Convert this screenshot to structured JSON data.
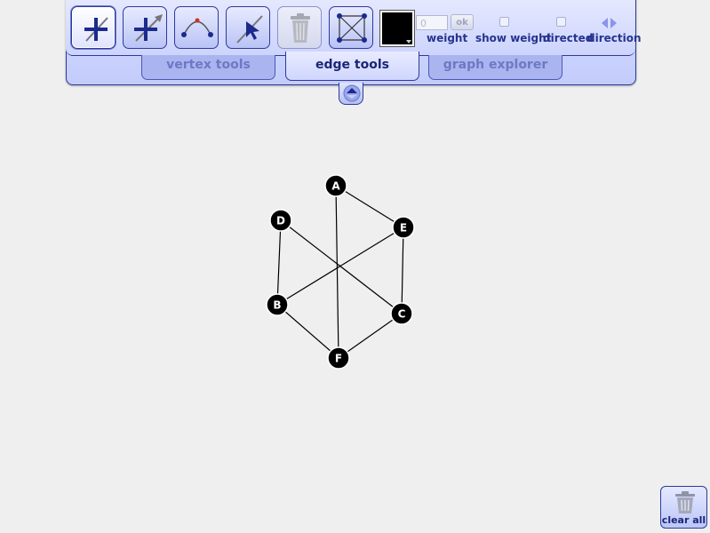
{
  "toolbar": {
    "tools": [
      {
        "name": "add-edge-tool",
        "active": true
      },
      {
        "name": "add-directed-edge-tool",
        "active": false
      },
      {
        "name": "curve-edge-tool",
        "active": false
      },
      {
        "name": "select-edge-tool",
        "active": false
      },
      {
        "name": "delete-edge-tool",
        "disabled": true
      },
      {
        "name": "complete-graph-tool",
        "active": false
      }
    ],
    "color": "#000000",
    "weight_value": "0",
    "ok_label": "ok",
    "weight_label": "weight",
    "show_weight_label": "show weight",
    "directed_label": "directed",
    "direction_label": "direction"
  },
  "tabs": [
    {
      "label": "vertex tools",
      "active": false
    },
    {
      "label": "edge tools",
      "active": true
    },
    {
      "label": "graph explorer",
      "active": false
    }
  ],
  "graph": {
    "vertices": [
      {
        "id": "A",
        "label": "A"
      },
      {
        "id": "D",
        "label": "D"
      },
      {
        "id": "E",
        "label": "E"
      },
      {
        "id": "B",
        "label": "B"
      },
      {
        "id": "C",
        "label": "C"
      },
      {
        "id": "F",
        "label": "F"
      }
    ],
    "edges": [
      [
        "A",
        "E"
      ],
      [
        "A",
        "F"
      ],
      [
        "D",
        "B"
      ],
      [
        "D",
        "C"
      ],
      [
        "E",
        "B"
      ],
      [
        "E",
        "C"
      ],
      [
        "B",
        "F"
      ],
      [
        "C",
        "F"
      ]
    ]
  },
  "clear_all_label": "clear all",
  "colors": {
    "accent": "#26348e",
    "panel": "#c9d1fc",
    "vertex": "#000000"
  }
}
